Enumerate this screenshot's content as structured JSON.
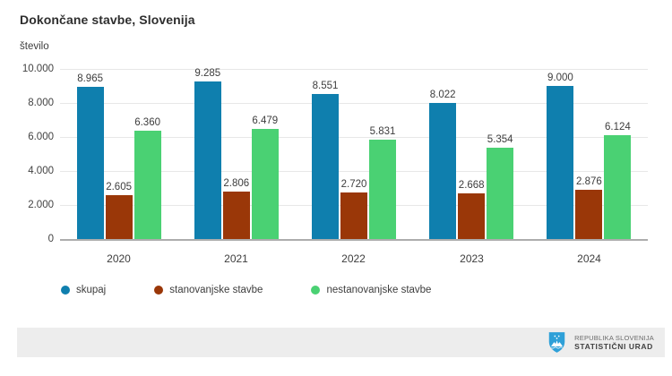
{
  "title": "Dokončane stavbe, Slovenija",
  "chart_data": {
    "type": "bar",
    "title": "Dokončane stavbe, Slovenija",
    "xlabel": "",
    "ylabel": "število",
    "ylim": [
      0,
      10000
    ],
    "grid": true,
    "legend_position": "bottom",
    "categories": [
      "2020",
      "2021",
      "2022",
      "2023",
      "2024"
    ],
    "ytick_labels": [
      "10.000",
      "8.000",
      "6.000",
      "4.000",
      "2.000",
      "0"
    ],
    "series": [
      {
        "name": "skupaj",
        "color": "#0f7fae",
        "values": [
          8965,
          9285,
          8551,
          8022,
          9000
        ],
        "labels": [
          "8.965",
          "9.285",
          "8.551",
          "8.022",
          "9.000"
        ]
      },
      {
        "name": "stanovanjske stavbe",
        "color": "#9a3708",
        "values": [
          2605,
          2806,
          2720,
          2668,
          2876
        ],
        "labels": [
          "2.605",
          "2.806",
          "2.720",
          "2.668",
          "2.876"
        ]
      },
      {
        "name": "nestanovanjske stavbe",
        "color": "#4ad173",
        "values": [
          6360,
          6479,
          5831,
          5354,
          6124
        ],
        "labels": [
          "6.360",
          "6.479",
          "5.831",
          "5.354",
          "6.124"
        ]
      }
    ]
  },
  "footer": {
    "logo": "slovenia-coat-of-arms",
    "logo_color": "#2ea0d8",
    "line1": "REPUBLIKA SLOVENIJA",
    "line2": "STATISTIČNI URAD"
  }
}
